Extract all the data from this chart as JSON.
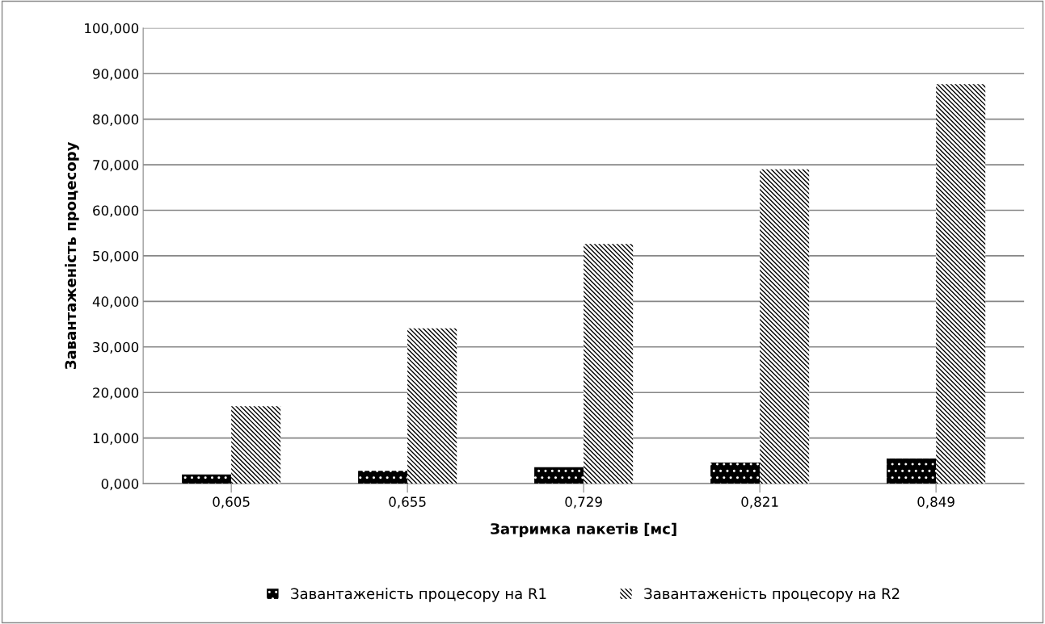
{
  "chart_data": {
    "type": "bar",
    "xlabel": "Затримка пакетів [мс]",
    "ylabel": "Завантаженість процесору",
    "categories": [
      "0,605",
      "0,655",
      "0,729",
      "0,821",
      "0,849"
    ],
    "series": [
      {
        "name": "Завантаженість процесору на R1",
        "color": "#000000",
        "values": [
          2.0,
          2.8,
          3.6,
          4.6,
          5.5
        ]
      },
      {
        "name": "Завантаженість процесору на R2",
        "color": "#ffffff",
        "values": [
          17.0,
          34.1,
          52.6,
          69.0,
          87.7
        ]
      }
    ],
    "ylim": [
      0,
      100
    ],
    "yticks": [
      {
        "value": 0,
        "label": "0,000"
      },
      {
        "value": 10,
        "label": "10,000"
      },
      {
        "value": 20,
        "label": "20,000"
      },
      {
        "value": 30,
        "label": "30,000"
      },
      {
        "value": 40,
        "label": "40,000"
      },
      {
        "value": 50,
        "label": "50,000"
      },
      {
        "value": 60,
        "label": "60,000"
      },
      {
        "value": 70,
        "label": "70,000"
      },
      {
        "value": 80,
        "label": "80,000"
      },
      {
        "value": 90,
        "label": "90,000"
      },
      {
        "value": 100,
        "label": "100,000"
      }
    ],
    "grid": "y",
    "legend": "bottom"
  }
}
